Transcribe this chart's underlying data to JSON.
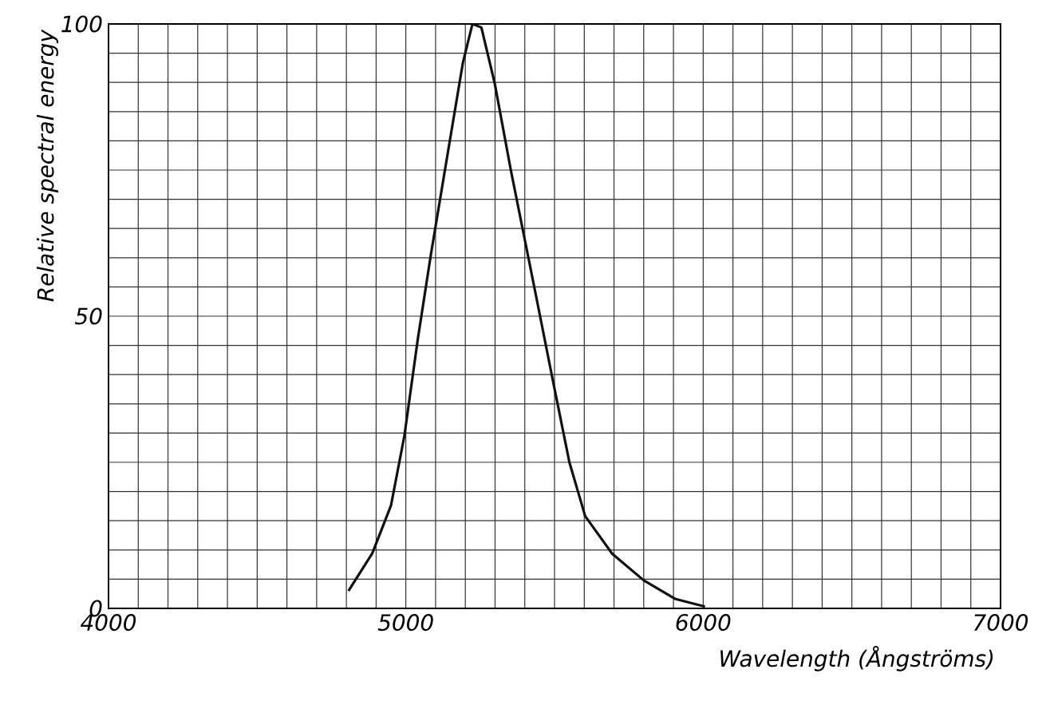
{
  "chart_data": {
    "type": "line",
    "xlabel": "Wavelength (Ångströms)",
    "ylabel": "Relative spectral energy",
    "x": [
      4807,
      4887,
      4950,
      4995,
      5040,
      5084,
      5138,
      5192,
      5224,
      5254,
      5299,
      5353,
      5424,
      5496,
      5550,
      5603,
      5693,
      5800,
      5907,
      6006
    ],
    "series": [
      {
        "color": "#111111",
        "values": [
          3,
          9.4,
          17.6,
          29.5,
          46,
          60.5,
          77,
          93.4,
          100,
          99.4,
          89.8,
          75,
          57,
          38.6,
          25,
          15.8,
          9.4,
          4.8,
          1.6,
          0.3
        ]
      }
    ],
    "xlim": [
      4000,
      7000
    ],
    "ylim": [
      0,
      100
    ],
    "xticks": [
      4000,
      {
        "value": 4100,
        "label": null
      },
      {
        "value": 4200,
        "label": null
      },
      {
        "value": 4300,
        "label": null
      },
      {
        "value": 4400,
        "label": null
      },
      {
        "value": 4500,
        "label": null
      },
      {
        "value": 4600,
        "label": null
      },
      {
        "value": 4700,
        "label": null
      },
      {
        "value": 4800,
        "label": null
      },
      {
        "value": 4900,
        "label": null
      },
      5000,
      {
        "value": 5100,
        "label": null
      },
      {
        "value": 5200,
        "label": null
      },
      {
        "value": 5300,
        "label": null
      },
      {
        "value": 5400,
        "label": null
      },
      {
        "value": 5500,
        "label": null
      },
      {
        "value": 5600,
        "label": null
      },
      {
        "value": 5700,
        "label": null
      },
      {
        "value": 5800,
        "label": null
      },
      {
        "value": 5900,
        "label": null
      },
      6000,
      {
        "value": 6100,
        "label": null
      },
      {
        "value": 6200,
        "label": null
      },
      {
        "value": 6300,
        "label": null
      },
      {
        "value": 6400,
        "label": null
      },
      {
        "value": 6500,
        "label": null
      },
      {
        "value": 6600,
        "label": null
      },
      {
        "value": 6700,
        "label": null
      },
      {
        "value": 6800,
        "label": null
      },
      {
        "value": 6900,
        "label": null
      },
      7000
    ],
    "yticks": [
      0,
      {
        "value": 5,
        "label": null
      },
      {
        "value": 10,
        "label": null
      },
      {
        "value": 15,
        "label": null
      },
      {
        "value": 20,
        "label": null
      },
      {
        "value": 25,
        "label": null
      },
      {
        "value": 30,
        "label": null
      },
      {
        "value": 35,
        "label": null
      },
      {
        "value": 40,
        "label": null
      },
      {
        "value": 45,
        "label": null
      },
      50,
      {
        "value": 55,
        "label": null
      },
      {
        "value": 60,
        "label": null
      },
      {
        "value": 65,
        "label": null
      },
      {
        "value": 70,
        "label": null
      },
      {
        "value": 75,
        "label": null
      },
      {
        "value": 80,
        "label": null
      },
      {
        "value": 85,
        "label": null
      },
      {
        "value": 90,
        "label": null
      },
      {
        "value": 95,
        "label": null
      },
      100
    ],
    "grid": true,
    "line_style": "solid"
  }
}
